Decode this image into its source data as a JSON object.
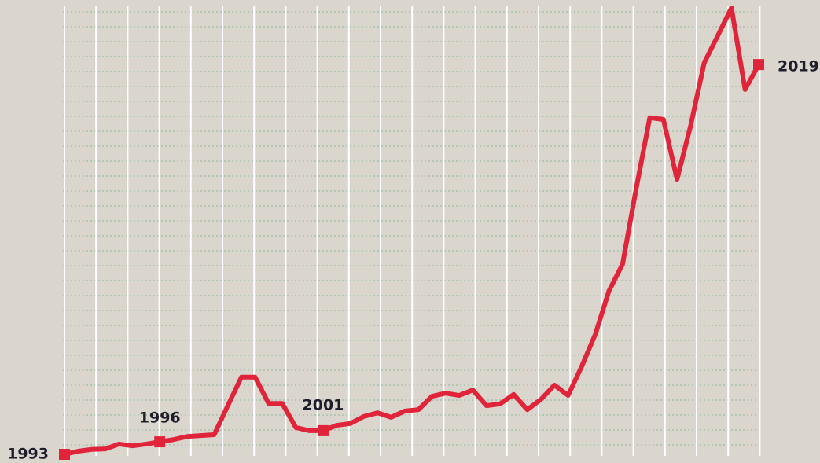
{
  "chart_data": {
    "type": "line",
    "values": [
      0,
      0.7,
      1.1,
      1.2,
      2.3,
      1.9,
      2.3,
      2.8,
      3.3,
      4.0,
      4.2,
      4.4,
      10.9,
      17.3,
      17.3,
      11.4,
      11.4,
      6.0,
      5.3,
      5.3,
      6.5,
      6.9,
      8.5,
      9.3,
      8.3,
      9.7,
      10.0,
      13.0,
      13.7,
      13.2,
      14.4,
      10.9,
      11.3,
      13.4,
      10.0,
      12.3,
      15.5,
      13.2,
      19.7,
      26.9,
      36.6,
      42.6,
      59.5,
      75.4,
      75.0,
      61.6,
      73.6,
      87.7,
      93.8,
      100,
      81.7,
      87.3
    ],
    "color": "#e0243a",
    "ylim": [
      0,
      100
    ],
    "annotations": [
      {
        "label": "1993",
        "index": 0
      },
      {
        "label": "1996",
        "index": 7
      },
      {
        "label": "2001",
        "index": 19
      },
      {
        "label": "2019",
        "index": 51
      }
    ]
  }
}
